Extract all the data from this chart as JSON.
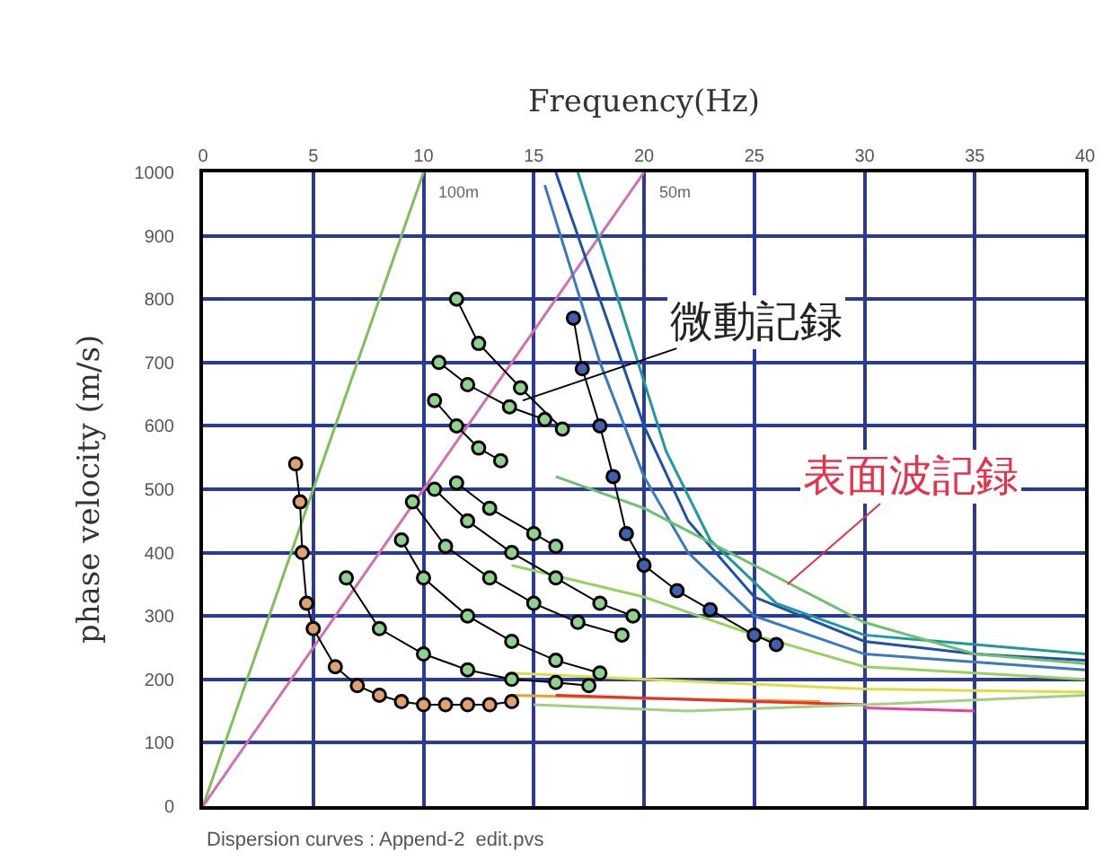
{
  "chart_data": {
    "type": "line",
    "xlabel": "Frequency(Hz)",
    "ylabel": "phase velocity (m/s)",
    "xlim": [
      0,
      40
    ],
    "xticks": [
      0,
      5,
      10,
      15,
      20,
      25,
      30,
      35,
      40
    ],
    "ylim": [
      0,
      1000
    ],
    "yticks": [
      0,
      100,
      200,
      300,
      400,
      500,
      600,
      700,
      800,
      900,
      1000
    ],
    "grid": true,
    "line_style": "solid",
    "series": [
      {
        "marker": "none",
        "color": "#7cc05a",
        "x": [
          0,
          10
        ],
        "values": [
          0,
          1000
        ]
      },
      {
        "type": "line",
        "marker": "none",
        "color": "#d070b0",
        "x": [
          0,
          20
        ],
        "values": [
          0,
          1000
        ]
      },
      {
        "type": "line",
        "marker": "none",
        "color": "#1f4fa8",
        "x": [
          16,
          18,
          20,
          22,
          25,
          30,
          35,
          40
        ],
        "values": [
          1000,
          800,
          600,
          450,
          330,
          260,
          240,
          230
        ]
      },
      {
        "type": "line",
        "marker": "none",
        "color": "#1c9aa0",
        "x": [
          17,
          19,
          21,
          23,
          26,
          30,
          40
        ],
        "values": [
          1000,
          780,
          560,
          420,
          320,
          270,
          240
        ]
      },
      {
        "type": "line",
        "marker": "none",
        "color": "#3a78c0",
        "x": [
          15.5,
          18,
          20,
          22,
          25,
          30,
          40
        ],
        "values": [
          980,
          700,
          520,
          400,
          300,
          240,
          215
        ]
      },
      {
        "type": "line",
        "marker": "none",
        "color": "#6cc070",
        "x": [
          16,
          20,
          25,
          30,
          35,
          40
        ],
        "values": [
          520,
          470,
          380,
          290,
          240,
          225
        ]
      },
      {
        "type": "line",
        "marker": "none",
        "color": "#9ad060",
        "x": [
          14,
          20,
          25,
          30,
          40
        ],
        "values": [
          380,
          330,
          270,
          220,
          200
        ]
      },
      {
        "type": "line",
        "marker": "none",
        "color": "#d8e040",
        "x": [
          14,
          20,
          30,
          40
        ],
        "values": [
          210,
          200,
          185,
          180
        ]
      },
      {
        "type": "line",
        "marker": "none",
        "color": "#f0a020",
        "x": [
          14,
          20,
          28
        ],
        "values": [
          175,
          170,
          165
        ]
      },
      {
        "type": "line",
        "marker": "none",
        "color": "#e83030",
        "x": [
          16,
          25,
          30
        ],
        "values": [
          175,
          165,
          160
        ]
      },
      {
        "type": "line",
        "marker": "none",
        "color": "#e8409a",
        "x": [
          30,
          35
        ],
        "values": [
          155,
          150
        ]
      },
      {
        "type": "line",
        "marker": "none",
        "color": "#a0d080",
        "x": [
          15,
          22,
          30,
          40
        ],
        "values": [
          160,
          150,
          160,
          175
        ]
      },
      {
        "type": "line",
        "marker": "circle",
        "color": "#e0a070",
        "x": [
          4.2,
          4.4,
          4.5,
          4.7,
          5,
          6,
          7,
          8,
          9,
          10,
          11,
          12,
          13,
          14
        ],
        "values": [
          540,
          480,
          400,
          320,
          280,
          220,
          190,
          175,
          165,
          160,
          160,
          160,
          160,
          165
        ]
      },
      {
        "type": "line",
        "marker": "circle",
        "color": "#8fd18f",
        "x": [
          6.5,
          8,
          10,
          12,
          14,
          16,
          17.5
        ],
        "values": [
          360,
          280,
          240,
          215,
          200,
          195,
          190
        ]
      },
      {
        "type": "line",
        "marker": "circle",
        "color": "#8fd18f",
        "x": [
          9,
          10,
          12,
          14,
          16,
          18
        ],
        "values": [
          420,
          360,
          300,
          260,
          230,
          210
        ]
      },
      {
        "type": "line",
        "marker": "circle",
        "color": "#8fd18f",
        "x": [
          9.5,
          11,
          13,
          15,
          17,
          19
        ],
        "values": [
          480,
          410,
          360,
          320,
          290,
          270
        ]
      },
      {
        "type": "line",
        "marker": "circle",
        "color": "#8fd18f",
        "x": [
          10.5,
          12,
          14,
          16,
          18,
          19.5
        ],
        "values": [
          500,
          450,
          400,
          360,
          320,
          300
        ]
      },
      {
        "type": "line",
        "marker": "circle",
        "color": "#8fd18f",
        "x": [
          11.5,
          13,
          15,
          16
        ],
        "values": [
          510,
          470,
          430,
          410
        ]
      },
      {
        "type": "line",
        "marker": "circle",
        "color": "#8fd18f",
        "x": [
          10.5,
          11.5,
          12.5,
          13.5
        ],
        "values": [
          640,
          600,
          565,
          545
        ]
      },
      {
        "type": "line",
        "marker": "circle",
        "color": "#8fd18f",
        "x": [
          10.7,
          12,
          13.9,
          15.5
        ],
        "values": [
          700,
          665,
          630,
          610
        ]
      },
      {
        "type": "line",
        "marker": "circle",
        "color": "#8fd18f",
        "x": [
          11.5,
          12.5,
          14.4,
          16.3
        ],
        "values": [
          800,
          730,
          660,
          595
        ]
      },
      {
        "type": "line",
        "marker": "circle",
        "color": "#4060b0",
        "x": [
          16.8,
          17.2,
          18,
          18.6,
          19.2,
          20,
          21.5,
          23,
          25,
          26
        ],
        "values": [
          770,
          690,
          600,
          520,
          430,
          380,
          340,
          310,
          270,
          255
        ]
      }
    ],
    "annotations": [
      {
        "text": "100m",
        "x": 10,
        "y": 1000
      },
      {
        "text": "50m",
        "x": 20,
        "y": 1000
      },
      {
        "text": "微動記録",
        "x": 14.5,
        "y": 640
      },
      {
        "text": "表面波記録",
        "x": 26.5,
        "y": 350
      },
      "Dispersion curves : Append-2  edit.pvs"
    ]
  }
}
